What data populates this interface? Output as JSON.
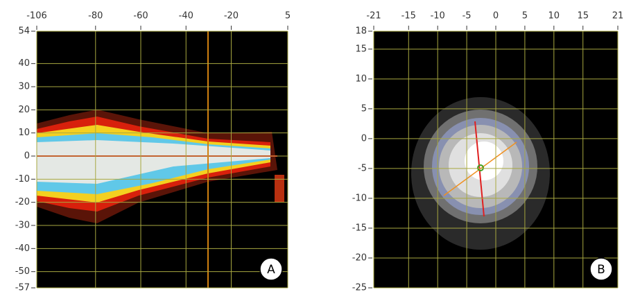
{
  "panels": [
    {
      "label": "A",
      "xticks": [
        -106,
        -80,
        -60,
        -40,
        -20,
        5
      ],
      "yticks": [
        54,
        40,
        30,
        20,
        10,
        0,
        -10,
        -20,
        -30,
        -40,
        -50,
        -57
      ]
    },
    {
      "label": "B",
      "xticks": [
        -21,
        -15,
        -10,
        -5,
        0,
        5,
        10,
        15,
        21
      ],
      "yticks": [
        18,
        15,
        10,
        5,
        0,
        -5,
        -10,
        -15,
        -20,
        -25
      ]
    }
  ]
}
